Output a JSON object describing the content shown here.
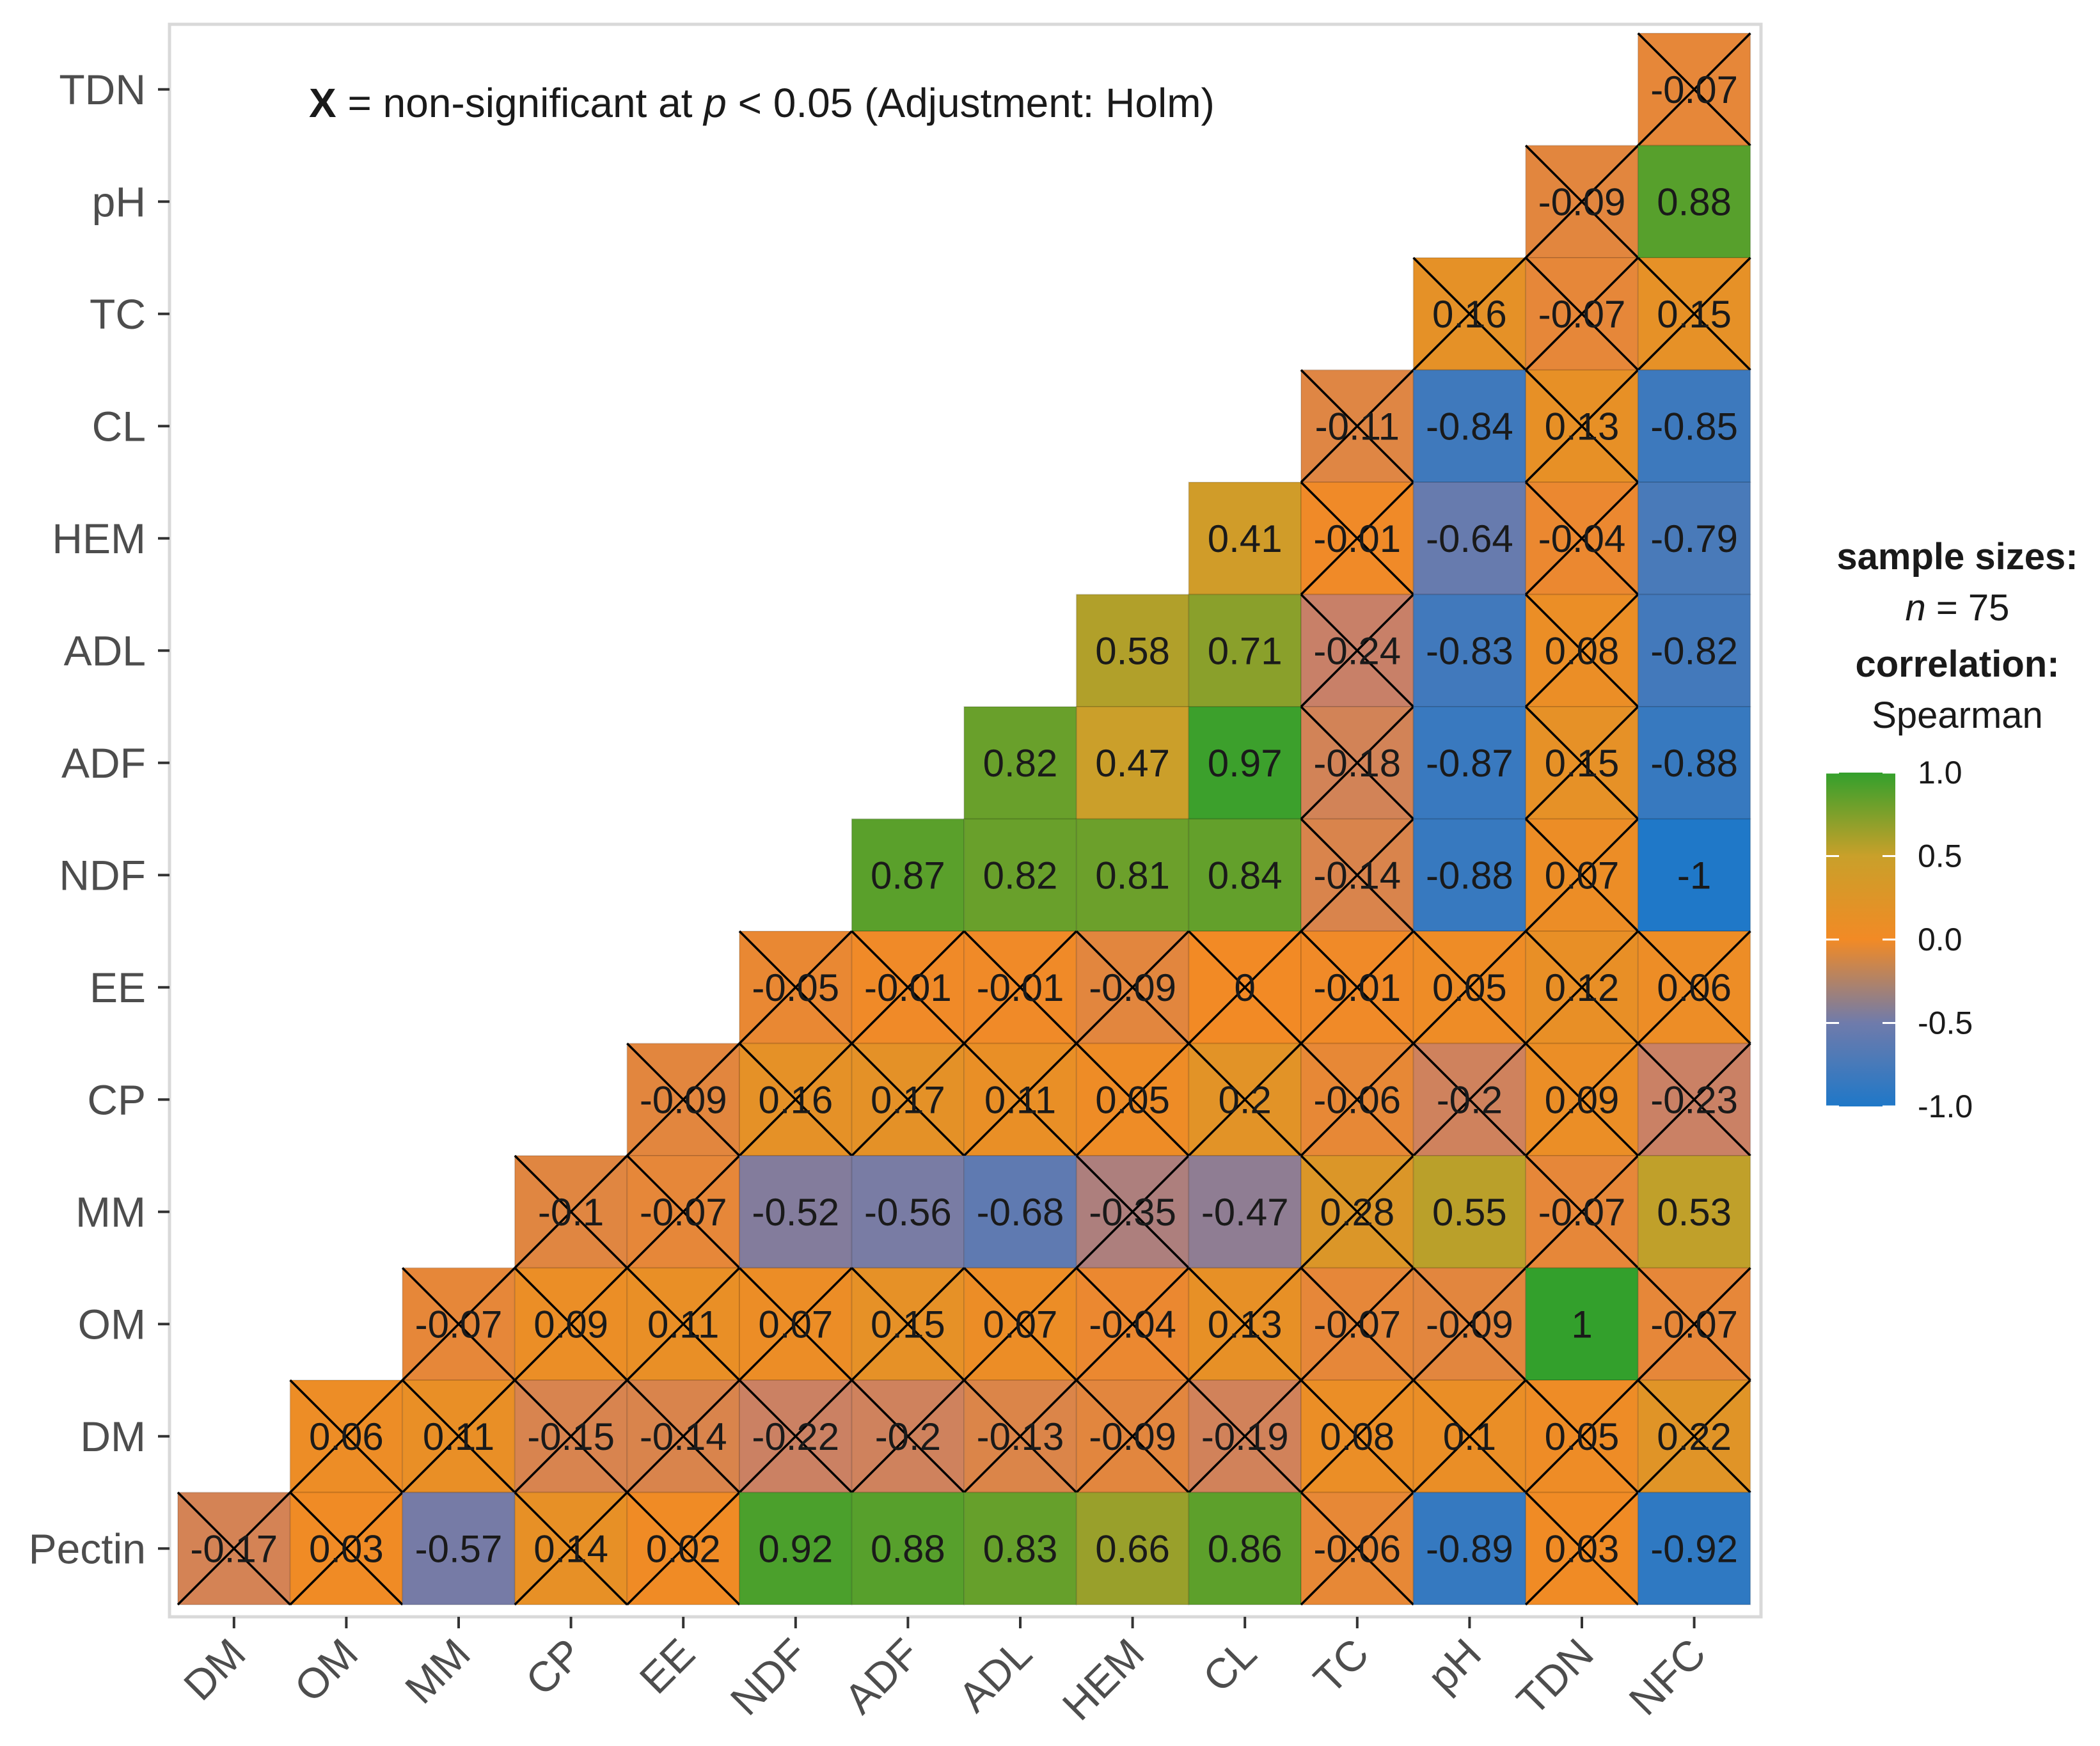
{
  "chart_data": {
    "type": "heatmap",
    "method": "Spearman",
    "x_labels": [
      "DM",
      "OM",
      "MM",
      "CP",
      "EE",
      "NDF",
      "ADF",
      "ADL",
      "HEM",
      "CL",
      "TC",
      "pH",
      "TDN",
      "NFC"
    ],
    "y_labels": [
      "TDN",
      "pH",
      "TC",
      "CL",
      "HEM",
      "ADL",
      "ADF",
      "NDF",
      "EE",
      "CP",
      "MM",
      "OM",
      "DM",
      "Pectin"
    ],
    "cells": [
      {
        "row": "TDN",
        "col": "NFC",
        "value": -0.07,
        "label": "-0.07",
        "significant": false
      },
      {
        "row": "pH",
        "col": "TDN",
        "value": -0.09,
        "label": "-0.09",
        "significant": false
      },
      {
        "row": "pH",
        "col": "NFC",
        "value": 0.88,
        "label": "0.88",
        "significant": true
      },
      {
        "row": "TC",
        "col": "pH",
        "value": 0.16,
        "label": "0.16",
        "significant": false
      },
      {
        "row": "TC",
        "col": "TDN",
        "value": -0.07,
        "label": "-0.07",
        "significant": false
      },
      {
        "row": "TC",
        "col": "NFC",
        "value": 0.15,
        "label": "0.15",
        "significant": false
      },
      {
        "row": "CL",
        "col": "TC",
        "value": -0.11,
        "label": "-0.11",
        "significant": false
      },
      {
        "row": "CL",
        "col": "pH",
        "value": -0.84,
        "label": "-0.84",
        "significant": true
      },
      {
        "row": "CL",
        "col": "TDN",
        "value": 0.13,
        "label": "0.13",
        "significant": false
      },
      {
        "row": "CL",
        "col": "NFC",
        "value": -0.85,
        "label": "-0.85",
        "significant": true
      },
      {
        "row": "HEM",
        "col": "CL",
        "value": 0.41,
        "label": "0.41",
        "significant": true
      },
      {
        "row": "HEM",
        "col": "TC",
        "value": -0.01,
        "label": "-0.01",
        "significant": false
      },
      {
        "row": "HEM",
        "col": "pH",
        "value": -0.64,
        "label": "-0.64",
        "significant": true
      },
      {
        "row": "HEM",
        "col": "TDN",
        "value": -0.04,
        "label": "-0.04",
        "significant": false
      },
      {
        "row": "HEM",
        "col": "NFC",
        "value": -0.79,
        "label": "-0.79",
        "significant": true
      },
      {
        "row": "ADL",
        "col": "HEM",
        "value": 0.58,
        "label": "0.58",
        "significant": true
      },
      {
        "row": "ADL",
        "col": "CL",
        "value": 0.71,
        "label": "0.71",
        "significant": true
      },
      {
        "row": "ADL",
        "col": "TC",
        "value": -0.24,
        "label": "-0.24",
        "significant": false
      },
      {
        "row": "ADL",
        "col": "pH",
        "value": -0.83,
        "label": "-0.83",
        "significant": true
      },
      {
        "row": "ADL",
        "col": "TDN",
        "value": 0.08,
        "label": "0.08",
        "significant": false
      },
      {
        "row": "ADL",
        "col": "NFC",
        "value": -0.82,
        "label": "-0.82",
        "significant": true
      },
      {
        "row": "ADF",
        "col": "ADL",
        "value": 0.82,
        "label": "0.82",
        "significant": true
      },
      {
        "row": "ADF",
        "col": "HEM",
        "value": 0.47,
        "label": "0.47",
        "significant": true
      },
      {
        "row": "ADF",
        "col": "CL",
        "value": 0.97,
        "label": "0.97",
        "significant": true
      },
      {
        "row": "ADF",
        "col": "TC",
        "value": -0.18,
        "label": "-0.18",
        "significant": false
      },
      {
        "row": "ADF",
        "col": "pH",
        "value": -0.87,
        "label": "-0.87",
        "significant": true
      },
      {
        "row": "ADF",
        "col": "TDN",
        "value": 0.15,
        "label": "0.15",
        "significant": false
      },
      {
        "row": "ADF",
        "col": "NFC",
        "value": -0.88,
        "label": "-0.88",
        "significant": true
      },
      {
        "row": "NDF",
        "col": "ADF",
        "value": 0.87,
        "label": "0.87",
        "significant": true
      },
      {
        "row": "NDF",
        "col": "ADL",
        "value": 0.82,
        "label": "0.82",
        "significant": true
      },
      {
        "row": "NDF",
        "col": "HEM",
        "value": 0.81,
        "label": "0.81",
        "significant": true
      },
      {
        "row": "NDF",
        "col": "CL",
        "value": 0.84,
        "label": "0.84",
        "significant": true
      },
      {
        "row": "NDF",
        "col": "TC",
        "value": -0.14,
        "label": "-0.14",
        "significant": false
      },
      {
        "row": "NDF",
        "col": "pH",
        "value": -0.88,
        "label": "-0.88",
        "significant": true
      },
      {
        "row": "NDF",
        "col": "TDN",
        "value": 0.07,
        "label": "0.07",
        "significant": false
      },
      {
        "row": "NDF",
        "col": "NFC",
        "value": -1,
        "label": "-1",
        "significant": true
      },
      {
        "row": "EE",
        "col": "NDF",
        "value": -0.05,
        "label": "-0.05",
        "significant": false
      },
      {
        "row": "EE",
        "col": "ADF",
        "value": -0.01,
        "label": "-0.01",
        "significant": false
      },
      {
        "row": "EE",
        "col": "ADL",
        "value": -0.01,
        "label": "-0.01",
        "significant": false
      },
      {
        "row": "EE",
        "col": "HEM",
        "value": -0.09,
        "label": "-0.09",
        "significant": false
      },
      {
        "row": "EE",
        "col": "CL",
        "value": 0,
        "label": "0",
        "significant": false
      },
      {
        "row": "EE",
        "col": "TC",
        "value": -0.01,
        "label": "-0.01",
        "significant": false
      },
      {
        "row": "EE",
        "col": "pH",
        "value": 0.05,
        "label": "0.05",
        "significant": false
      },
      {
        "row": "EE",
        "col": "TDN",
        "value": 0.12,
        "label": "0.12",
        "significant": false
      },
      {
        "row": "EE",
        "col": "NFC",
        "value": 0.06,
        "label": "0.06",
        "significant": false
      },
      {
        "row": "CP",
        "col": "EE",
        "value": -0.09,
        "label": "-0.09",
        "significant": false
      },
      {
        "row": "CP",
        "col": "NDF",
        "value": 0.16,
        "label": "0.16",
        "significant": false
      },
      {
        "row": "CP",
        "col": "ADF",
        "value": 0.17,
        "label": "0.17",
        "significant": false
      },
      {
        "row": "CP",
        "col": "ADL",
        "value": 0.11,
        "label": "0.11",
        "significant": false
      },
      {
        "row": "CP",
        "col": "HEM",
        "value": 0.05,
        "label": "0.05",
        "significant": false
      },
      {
        "row": "CP",
        "col": "CL",
        "value": 0.2,
        "label": "0.2",
        "significant": false
      },
      {
        "row": "CP",
        "col": "TC",
        "value": -0.06,
        "label": "-0.06",
        "significant": false
      },
      {
        "row": "CP",
        "col": "pH",
        "value": -0.2,
        "label": "-0.2",
        "significant": false
      },
      {
        "row": "CP",
        "col": "TDN",
        "value": 0.09,
        "label": "0.09",
        "significant": false
      },
      {
        "row": "CP",
        "col": "NFC",
        "value": -0.23,
        "label": "-0.23",
        "significant": false
      },
      {
        "row": "MM",
        "col": "CP",
        "value": -0.1,
        "label": "-0.1",
        "significant": false
      },
      {
        "row": "MM",
        "col": "EE",
        "value": -0.07,
        "label": "-0.07",
        "significant": false
      },
      {
        "row": "MM",
        "col": "NDF",
        "value": -0.52,
        "label": "-0.52",
        "significant": true
      },
      {
        "row": "MM",
        "col": "ADF",
        "value": -0.56,
        "label": "-0.56",
        "significant": true
      },
      {
        "row": "MM",
        "col": "ADL",
        "value": -0.68,
        "label": "-0.68",
        "significant": true
      },
      {
        "row": "MM",
        "col": "HEM",
        "value": -0.35,
        "label": "-0.35",
        "significant": false
      },
      {
        "row": "MM",
        "col": "CL",
        "value": -0.47,
        "label": "-0.47",
        "significant": true
      },
      {
        "row": "MM",
        "col": "TC",
        "value": 0.28,
        "label": "0.28",
        "significant": false
      },
      {
        "row": "MM",
        "col": "pH",
        "value": 0.55,
        "label": "0.55",
        "significant": true
      },
      {
        "row": "MM",
        "col": "TDN",
        "value": -0.07,
        "label": "-0.07",
        "significant": false
      },
      {
        "row": "MM",
        "col": "NFC",
        "value": 0.53,
        "label": "0.53",
        "significant": true
      },
      {
        "row": "OM",
        "col": "MM",
        "value": -0.07,
        "label": "-0.07",
        "significant": false
      },
      {
        "row": "OM",
        "col": "CP",
        "value": 0.09,
        "label": "0.09",
        "significant": false
      },
      {
        "row": "OM",
        "col": "EE",
        "value": 0.11,
        "label": "0.11",
        "significant": false
      },
      {
        "row": "OM",
        "col": "NDF",
        "value": 0.07,
        "label": "0.07",
        "significant": false
      },
      {
        "row": "OM",
        "col": "ADF",
        "value": 0.15,
        "label": "0.15",
        "significant": false
      },
      {
        "row": "OM",
        "col": "ADL",
        "value": 0.07,
        "label": "0.07",
        "significant": false
      },
      {
        "row": "OM",
        "col": "HEM",
        "value": -0.04,
        "label": "-0.04",
        "significant": false
      },
      {
        "row": "OM",
        "col": "CL",
        "value": 0.13,
        "label": "0.13",
        "significant": false
      },
      {
        "row": "OM",
        "col": "TC",
        "value": -0.07,
        "label": "-0.07",
        "significant": false
      },
      {
        "row": "OM",
        "col": "pH",
        "value": -0.09,
        "label": "-0.09",
        "significant": false
      },
      {
        "row": "OM",
        "col": "TDN",
        "value": 1,
        "label": "1",
        "significant": true
      },
      {
        "row": "OM",
        "col": "NFC",
        "value": -0.07,
        "label": "-0.07",
        "significant": false
      },
      {
        "row": "DM",
        "col": "OM",
        "value": 0.06,
        "label": "0.06",
        "significant": false
      },
      {
        "row": "DM",
        "col": "MM",
        "value": 0.11,
        "label": "0.11",
        "significant": false
      },
      {
        "row": "DM",
        "col": "CP",
        "value": -0.15,
        "label": "-0.15",
        "significant": false
      },
      {
        "row": "DM",
        "col": "EE",
        "value": -0.14,
        "label": "-0.14",
        "significant": false
      },
      {
        "row": "DM",
        "col": "NDF",
        "value": -0.22,
        "label": "-0.22",
        "significant": false
      },
      {
        "row": "DM",
        "col": "ADF",
        "value": -0.2,
        "label": "-0.2",
        "significant": false
      },
      {
        "row": "DM",
        "col": "ADL",
        "value": -0.13,
        "label": "-0.13",
        "significant": false
      },
      {
        "row": "DM",
        "col": "HEM",
        "value": -0.09,
        "label": "-0.09",
        "significant": false
      },
      {
        "row": "DM",
        "col": "CL",
        "value": -0.19,
        "label": "-0.19",
        "significant": false
      },
      {
        "row": "DM",
        "col": "TC",
        "value": 0.08,
        "label": "0.08",
        "significant": false
      },
      {
        "row": "DM",
        "col": "pH",
        "value": 0.1,
        "label": "0.1",
        "significant": false
      },
      {
        "row": "DM",
        "col": "TDN",
        "value": 0.05,
        "label": "0.05",
        "significant": false
      },
      {
        "row": "DM",
        "col": "NFC",
        "value": 0.22,
        "label": "0.22",
        "significant": false
      },
      {
        "row": "Pectin",
        "col": "DM",
        "value": -0.17,
        "label": "-0.17",
        "significant": false
      },
      {
        "row": "Pectin",
        "col": "OM",
        "value": 0.03,
        "label": "0.03",
        "significant": false
      },
      {
        "row": "Pectin",
        "col": "MM",
        "value": -0.57,
        "label": "-0.57",
        "significant": true
      },
      {
        "row": "Pectin",
        "col": "CP",
        "value": 0.14,
        "label": "0.14",
        "significant": false
      },
      {
        "row": "Pectin",
        "col": "EE",
        "value": 0.02,
        "label": "0.02",
        "significant": false
      },
      {
        "row": "Pectin",
        "col": "NDF",
        "value": 0.92,
        "label": "0.92",
        "significant": true
      },
      {
        "row": "Pectin",
        "col": "ADF",
        "value": 0.88,
        "label": "0.88",
        "significant": true
      },
      {
        "row": "Pectin",
        "col": "ADL",
        "value": 0.83,
        "label": "0.83",
        "significant": true
      },
      {
        "row": "Pectin",
        "col": "HEM",
        "value": 0.66,
        "label": "0.66",
        "significant": true
      },
      {
        "row": "Pectin",
        "col": "CL",
        "value": 0.86,
        "label": "0.86",
        "significant": true
      },
      {
        "row": "Pectin",
        "col": "TC",
        "value": -0.06,
        "label": "-0.06",
        "significant": false
      },
      {
        "row": "Pectin",
        "col": "pH",
        "value": -0.89,
        "label": "-0.89",
        "significant": true
      },
      {
        "row": "Pectin",
        "col": "TDN",
        "value": 0.03,
        "label": "0.03",
        "significant": false
      },
      {
        "row": "Pectin",
        "col": "NFC",
        "value": -0.92,
        "label": "-0.92",
        "significant": true
      }
    ],
    "annotation": {
      "symbol": "X",
      "text": " = non-significant at ",
      "p_symbol": "p",
      "p_text": " < 0.05 (Adjustment: Holm)"
    },
    "legend": {
      "sample_sizes_title": "sample sizes:",
      "n_symbol": "n",
      "n_text": " = 75",
      "correlation_title": "correlation:",
      "method_label": "Spearman",
      "ticks": [
        {
          "value": 1.0,
          "label": "1.0"
        },
        {
          "value": 0.5,
          "label": "0.5"
        },
        {
          "value": 0.0,
          "label": "0.0"
        },
        {
          "value": -0.5,
          "label": "-0.5"
        },
        {
          "value": -1.0,
          "label": "-1.0"
        }
      ],
      "range": [
        -1,
        1
      ],
      "position": "right"
    },
    "colors": {
      "low": "#1f78c8",
      "mid_low": "#6f7bab",
      "mid_low2": "#c6806b",
      "mid": "#f28a25",
      "mid_high": "#c9a02a",
      "high": "#33a02c"
    }
  }
}
